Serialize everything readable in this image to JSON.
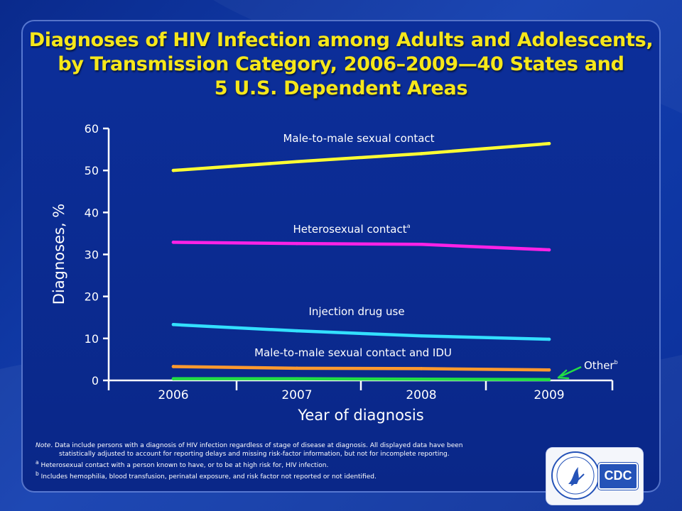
{
  "title_lines": [
    "Diagnoses of HIV Infection among Adults and Adolescents,",
    "by Transmission Category, 2006–2009—40 States and",
    "5 U.S. Dependent Areas"
  ],
  "chart_data": {
    "type": "line",
    "title": "Diagnoses of HIV Infection among Adults and Adolescents, by Transmission Category, 2006–2009—40 States and 5 U.S. Dependent Areas",
    "xlabel": "Year of diagnosis",
    "ylabel": "Diagnoses, %",
    "x": [
      "2006",
      "2007",
      "2008",
      "2009"
    ],
    "ylim": [
      0,
      60
    ],
    "yticks": [
      0,
      10,
      20,
      30,
      40,
      50,
      60
    ],
    "grid": false,
    "series": [
      {
        "name": "Male-to-male sexual contact",
        "label_sup": "",
        "color": "#ffff33",
        "values": [
          50.0,
          52.1,
          54.0,
          56.4
        ]
      },
      {
        "name": "Heterosexual contact",
        "label_sup": "a",
        "color": "#ff22e6",
        "values": [
          32.9,
          32.6,
          32.4,
          31.1
        ]
      },
      {
        "name": "Injection drug use",
        "label_sup": "",
        "color": "#33e0ff",
        "values": [
          13.3,
          11.8,
          10.6,
          9.8
        ]
      },
      {
        "name": "Male-to-male sexual contact and IDU",
        "label_sup": "",
        "color": "#ff9a2e",
        "values": [
          3.3,
          2.9,
          2.8,
          2.5
        ]
      },
      {
        "name": "Other",
        "label_sup": "b",
        "color": "#22dd44",
        "values": [
          0.4,
          0.4,
          0.3,
          0.2
        ]
      }
    ]
  },
  "notes": {
    "note_prefix": "Note",
    "note_text": ". Data include persons with a diagnosis of HIV infection regardless of stage of  disease at diagnosis. All displayed data have been",
    "note_cont": "statistically adjusted to account for reporting delays  and missing risk-factor information, but not for incomplete  reporting.",
    "footnote_a_mark": "a",
    "footnote_a": " Heterosexual contact with a person known to have, or to be at high risk for, HIV infection.",
    "footnote_b_mark": "b",
    "footnote_b": " Includes hemophilia, blood transfusion, perinatal exposure, and risk factor not reported  or not identified."
  },
  "logo": {
    "text": "CDC"
  }
}
